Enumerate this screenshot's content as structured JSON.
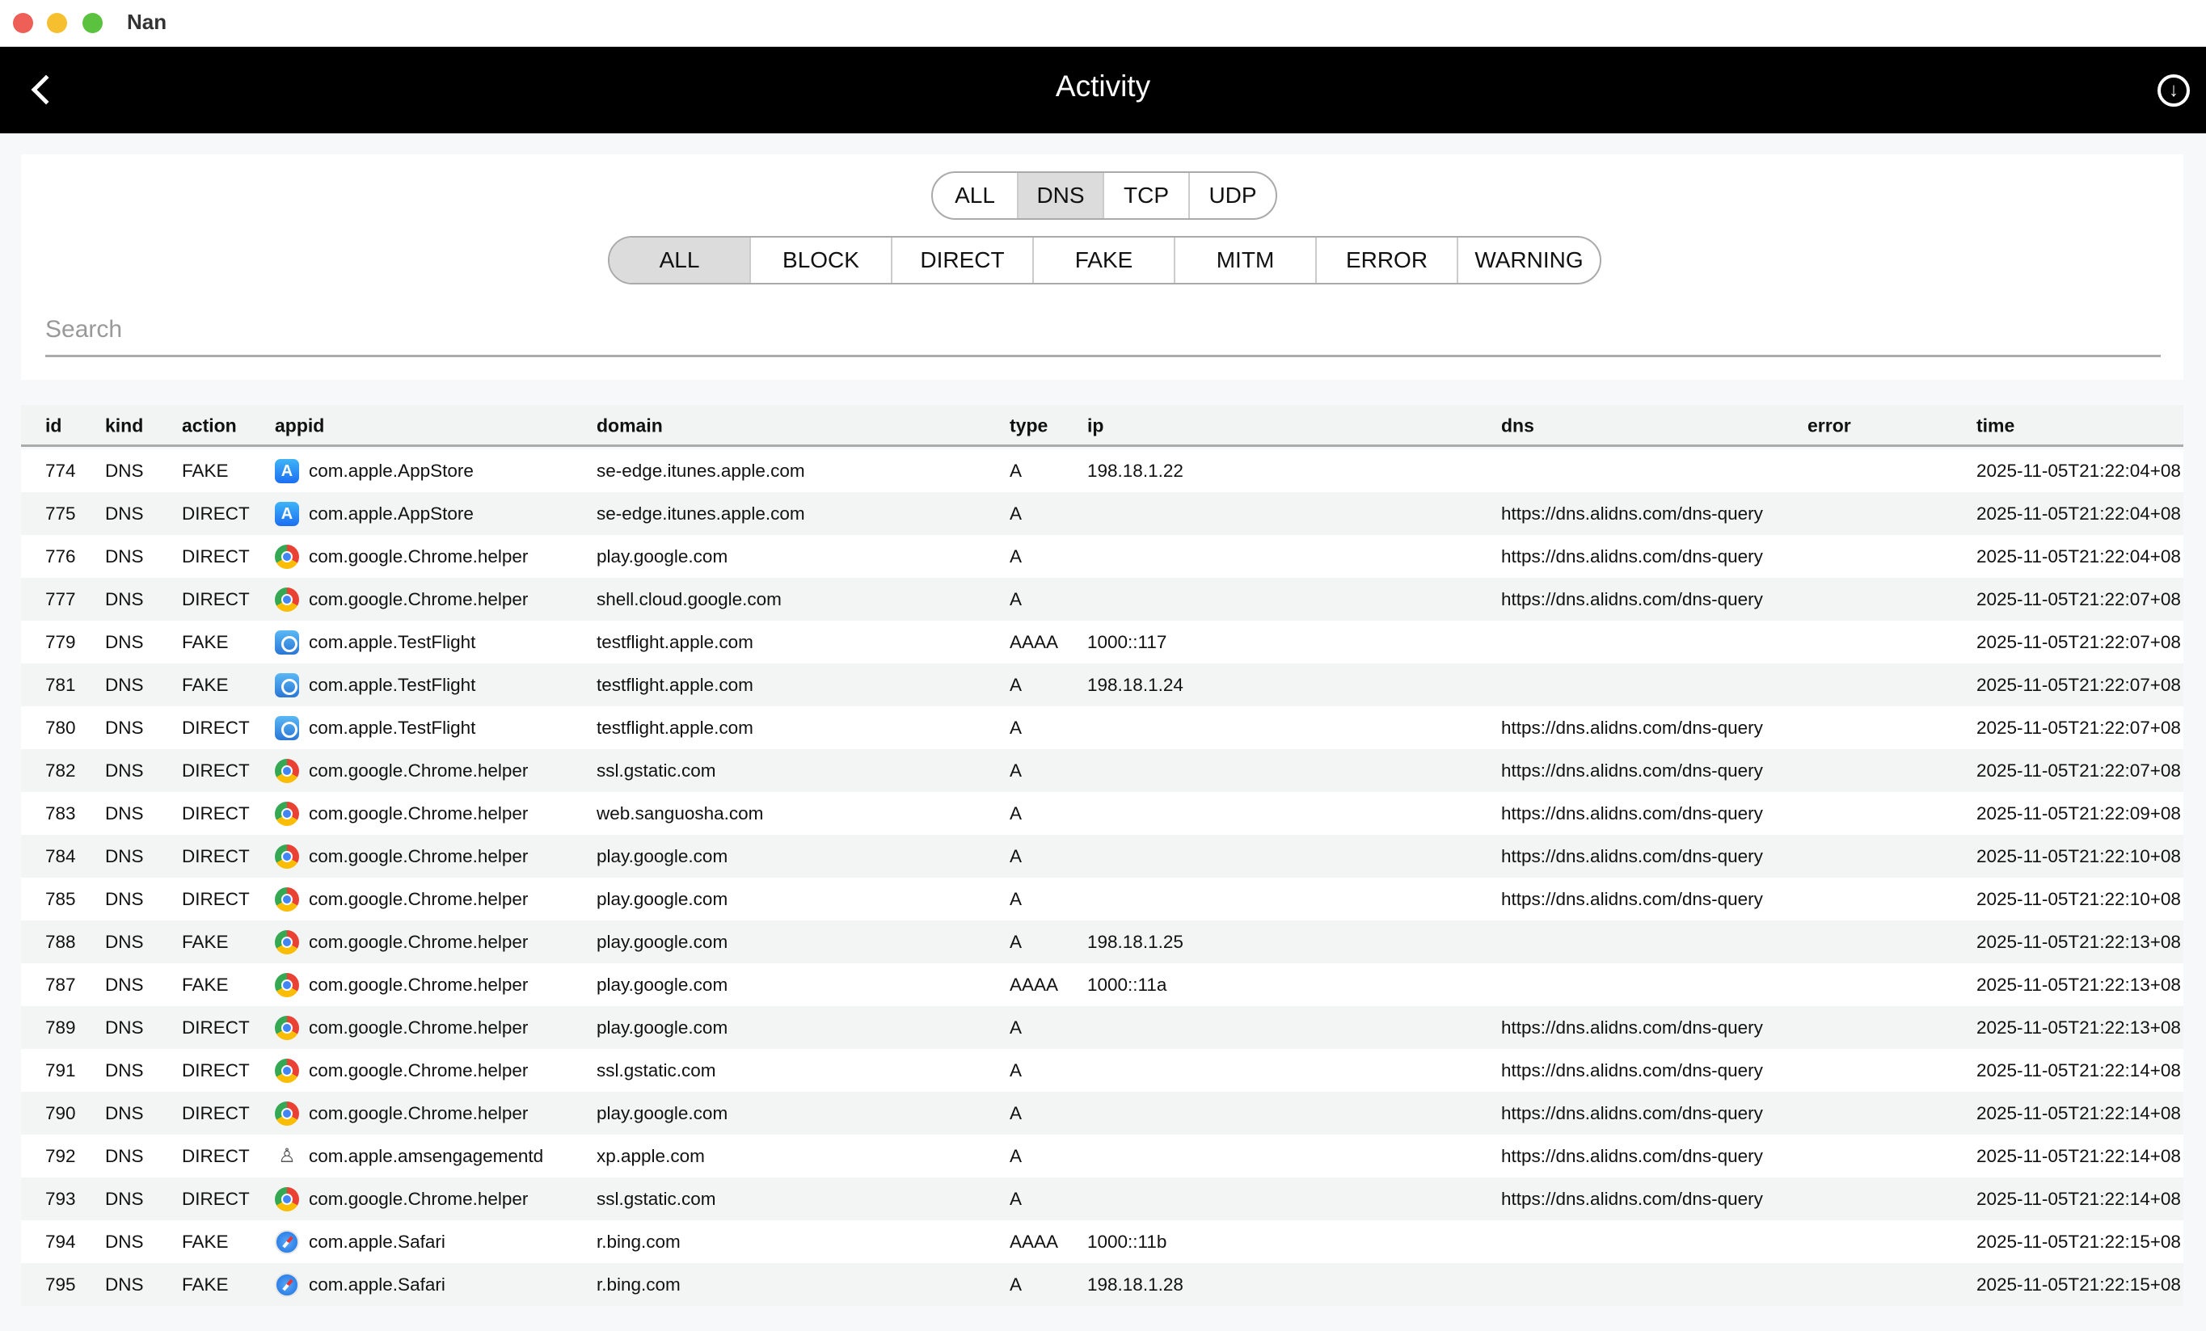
{
  "window": {
    "title": "Nan",
    "traffic_lights": {
      "close": "#ee5f57",
      "minimize": "#f5bf2f",
      "zoom": "#5ac23f"
    }
  },
  "header": {
    "title": "Activity",
    "back_icon": "chevron-left-icon",
    "download_icon": "download-circle-icon"
  },
  "filters": {
    "protocol": {
      "options": [
        "ALL",
        "DNS",
        "TCP",
        "UDP"
      ],
      "selected": "DNS"
    },
    "action": {
      "options": [
        "ALL",
        "BLOCK",
        "DIRECT",
        "FAKE",
        "MITM",
        "ERROR",
        "WARNING"
      ],
      "selected": "ALL"
    },
    "search": {
      "placeholder": "Search",
      "value": ""
    }
  },
  "table": {
    "columns": [
      "id",
      "kind",
      "action",
      "appid",
      "domain",
      "type",
      "ip",
      "dns",
      "error",
      "time"
    ],
    "rows": [
      {
        "id": "774",
        "kind": "DNS",
        "action": "FAKE",
        "icon": "appstore",
        "appid": "com.apple.AppStore",
        "domain": "se-edge.itunes.apple.com",
        "type": "A",
        "ip": "198.18.1.22",
        "dns": "",
        "error": "",
        "time": "2025-11-05T21:22:04+08"
      },
      {
        "id": "775",
        "kind": "DNS",
        "action": "DIRECT",
        "icon": "appstore",
        "appid": "com.apple.AppStore",
        "domain": "se-edge.itunes.apple.com",
        "type": "A",
        "ip": "",
        "dns": "https://dns.alidns.com/dns-query",
        "error": "",
        "time": "2025-11-05T21:22:04+08"
      },
      {
        "id": "776",
        "kind": "DNS",
        "action": "DIRECT",
        "icon": "chrome",
        "appid": "com.google.Chrome.helper",
        "domain": "play.google.com",
        "type": "A",
        "ip": "",
        "dns": "https://dns.alidns.com/dns-query",
        "error": "",
        "time": "2025-11-05T21:22:04+08"
      },
      {
        "id": "777",
        "kind": "DNS",
        "action": "DIRECT",
        "icon": "chrome",
        "appid": "com.google.Chrome.helper",
        "domain": "shell.cloud.google.com",
        "type": "A",
        "ip": "",
        "dns": "https://dns.alidns.com/dns-query",
        "error": "",
        "time": "2025-11-05T21:22:07+08"
      },
      {
        "id": "779",
        "kind": "DNS",
        "action": "FAKE",
        "icon": "testflight",
        "appid": "com.apple.TestFlight",
        "domain": "testflight.apple.com",
        "type": "AAAA",
        "ip": "1000::117",
        "dns": "",
        "error": "",
        "time": "2025-11-05T21:22:07+08"
      },
      {
        "id": "781",
        "kind": "DNS",
        "action": "FAKE",
        "icon": "testflight",
        "appid": "com.apple.TestFlight",
        "domain": "testflight.apple.com",
        "type": "A",
        "ip": "198.18.1.24",
        "dns": "",
        "error": "",
        "time": "2025-11-05T21:22:07+08"
      },
      {
        "id": "780",
        "kind": "DNS",
        "action": "DIRECT",
        "icon": "testflight",
        "appid": "com.apple.TestFlight",
        "domain": "testflight.apple.com",
        "type": "A",
        "ip": "",
        "dns": "https://dns.alidns.com/dns-query",
        "error": "",
        "time": "2025-11-05T21:22:07+08"
      },
      {
        "id": "782",
        "kind": "DNS",
        "action": "DIRECT",
        "icon": "chrome",
        "appid": "com.google.Chrome.helper",
        "domain": "ssl.gstatic.com",
        "type": "A",
        "ip": "",
        "dns": "https://dns.alidns.com/dns-query",
        "error": "",
        "time": "2025-11-05T21:22:07+08"
      },
      {
        "id": "783",
        "kind": "DNS",
        "action": "DIRECT",
        "icon": "chrome",
        "appid": "com.google.Chrome.helper",
        "domain": "web.sanguosha.com",
        "type": "A",
        "ip": "",
        "dns": "https://dns.alidns.com/dns-query",
        "error": "",
        "time": "2025-11-05T21:22:09+08"
      },
      {
        "id": "784",
        "kind": "DNS",
        "action": "DIRECT",
        "icon": "chrome",
        "appid": "com.google.Chrome.helper",
        "domain": "play.google.com",
        "type": "A",
        "ip": "",
        "dns": "https://dns.alidns.com/dns-query",
        "error": "",
        "time": "2025-11-05T21:22:10+08"
      },
      {
        "id": "785",
        "kind": "DNS",
        "action": "DIRECT",
        "icon": "chrome",
        "appid": "com.google.Chrome.helper",
        "domain": "play.google.com",
        "type": "A",
        "ip": "",
        "dns": "https://dns.alidns.com/dns-query",
        "error": "",
        "time": "2025-11-05T21:22:10+08"
      },
      {
        "id": "788",
        "kind": "DNS",
        "action": "FAKE",
        "icon": "chrome",
        "appid": "com.google.Chrome.helper",
        "domain": "play.google.com",
        "type": "A",
        "ip": "198.18.1.25",
        "dns": "",
        "error": "",
        "time": "2025-11-05T21:22:13+08"
      },
      {
        "id": "787",
        "kind": "DNS",
        "action": "FAKE",
        "icon": "chrome",
        "appid": "com.google.Chrome.helper",
        "domain": "play.google.com",
        "type": "AAAA",
        "ip": "1000::11a",
        "dns": "",
        "error": "",
        "time": "2025-11-05T21:22:13+08"
      },
      {
        "id": "789",
        "kind": "DNS",
        "action": "DIRECT",
        "icon": "chrome",
        "appid": "com.google.Chrome.helper",
        "domain": "play.google.com",
        "type": "A",
        "ip": "",
        "dns": "https://dns.alidns.com/dns-query",
        "error": "",
        "time": "2025-11-05T21:22:13+08"
      },
      {
        "id": "791",
        "kind": "DNS",
        "action": "DIRECT",
        "icon": "chrome",
        "appid": "com.google.Chrome.helper",
        "domain": "ssl.gstatic.com",
        "type": "A",
        "ip": "",
        "dns": "https://dns.alidns.com/dns-query",
        "error": "",
        "time": "2025-11-05T21:22:14+08"
      },
      {
        "id": "790",
        "kind": "DNS",
        "action": "DIRECT",
        "icon": "chrome",
        "appid": "com.google.Chrome.helper",
        "domain": "play.google.com",
        "type": "A",
        "ip": "",
        "dns": "https://dns.alidns.com/dns-query",
        "error": "",
        "time": "2025-11-05T21:22:14+08"
      },
      {
        "id": "792",
        "kind": "DNS",
        "action": "DIRECT",
        "icon": "spy",
        "appid": "com.apple.amsengagementd",
        "domain": "xp.apple.com",
        "type": "A",
        "ip": "",
        "dns": "https://dns.alidns.com/dns-query",
        "error": "",
        "time": "2025-11-05T21:22:14+08"
      },
      {
        "id": "793",
        "kind": "DNS",
        "action": "DIRECT",
        "icon": "chrome",
        "appid": "com.google.Chrome.helper",
        "domain": "ssl.gstatic.com",
        "type": "A",
        "ip": "",
        "dns": "https://dns.alidns.com/dns-query",
        "error": "",
        "time": "2025-11-05T21:22:14+08"
      },
      {
        "id": "794",
        "kind": "DNS",
        "action": "FAKE",
        "icon": "safari",
        "appid": "com.apple.Safari",
        "domain": "r.bing.com",
        "type": "AAAA",
        "ip": "1000::11b",
        "dns": "",
        "error": "",
        "time": "2025-11-05T21:22:15+08"
      },
      {
        "id": "795",
        "kind": "DNS",
        "action": "FAKE",
        "icon": "safari",
        "appid": "com.apple.Safari",
        "domain": "r.bing.com",
        "type": "A",
        "ip": "198.18.1.28",
        "dns": "",
        "error": "",
        "time": "2025-11-05T21:22:15+08"
      }
    ]
  }
}
